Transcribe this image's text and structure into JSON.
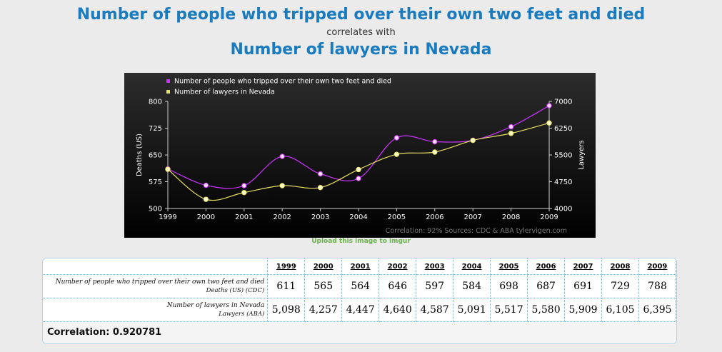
{
  "header": {
    "title": "Number of people who tripped over their own two feet and died",
    "connector": "correlates with",
    "subtitle": "Number of lawyers in Nevada"
  },
  "chart_data": {
    "type": "line",
    "x": [
      "1999",
      "2000",
      "2001",
      "2002",
      "2003",
      "2004",
      "2005",
      "2006",
      "2007",
      "2008",
      "2009"
    ],
    "series": [
      {
        "name": "Number of people who tripped over their own two feet and died",
        "axis": "left",
        "color": "#cc33ff",
        "values": [
          611,
          565,
          564,
          646,
          597,
          584,
          698,
          687,
          691,
          729,
          788
        ]
      },
      {
        "name": "Number of lawyers in Nevada",
        "axis": "right",
        "color": "#e8e060",
        "values": [
          5098,
          4257,
          4447,
          4640,
          4587,
          5091,
          5517,
          5580,
          5909,
          6105,
          6395
        ]
      }
    ],
    "ylabel_left": "Deaths (US)",
    "ylabel_right": "Lawyers",
    "ylim_left": [
      500,
      800
    ],
    "ylim_right": [
      4000,
      7000
    ],
    "yticks_left": [
      "500",
      "575",
      "650",
      "725",
      "800"
    ],
    "yticks_right": [
      "4000",
      "4750",
      "5500",
      "6250",
      "7000"
    ],
    "legend_position": "top-left",
    "grid": false,
    "footer_note": "Correlation: 92%    Sources: CDC & ABA    tylervigen.com"
  },
  "upload_link": "Upload this image to imgur",
  "table": {
    "years": [
      "1999",
      "2000",
      "2001",
      "2002",
      "2003",
      "2004",
      "2005",
      "2006",
      "2007",
      "2008",
      "2009"
    ],
    "rows": [
      {
        "label": "Number of people who tripped over their own two feet and died",
        "sublabel": "Deaths (US) (CDC)",
        "values": [
          "611",
          "565",
          "564",
          "646",
          "597",
          "584",
          "698",
          "687",
          "691",
          "729",
          "788"
        ]
      },
      {
        "label": "Number of lawyers in Nevada",
        "sublabel": "Lawyers (ABA)",
        "values": [
          "5,098",
          "4,257",
          "4,447",
          "4,640",
          "4,587",
          "5,091",
          "5,517",
          "5,580",
          "5,909",
          "6,105",
          "6,395"
        ]
      }
    ],
    "correlation": "Correlation: 0.920781"
  }
}
